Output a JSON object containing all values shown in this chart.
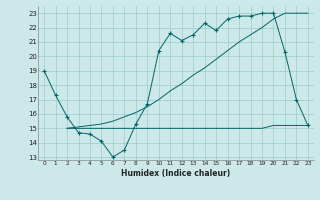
{
  "xlabel": "Humidex (Indice chaleur)",
  "background_color": "#cce8e8",
  "grid_color": "#99cccc",
  "line_color": "#006666",
  "xlim": [
    -0.5,
    23.5
  ],
  "ylim": [
    12.8,
    23.5
  ],
  "yticks": [
    13,
    14,
    15,
    16,
    17,
    18,
    19,
    20,
    21,
    22,
    23
  ],
  "xticks": [
    0,
    1,
    2,
    3,
    4,
    5,
    6,
    7,
    8,
    9,
    10,
    11,
    12,
    13,
    14,
    15,
    16,
    17,
    18,
    19,
    20,
    21,
    22,
    23
  ],
  "series1_x": [
    0,
    1,
    2,
    3,
    4,
    5,
    6,
    7,
    8,
    9,
    10,
    11,
    12,
    13,
    14,
    15,
    16,
    17,
    18,
    19,
    20,
    21,
    22,
    23
  ],
  "series1_y": [
    19.0,
    17.3,
    15.8,
    14.7,
    14.6,
    14.1,
    13.0,
    13.5,
    15.3,
    16.7,
    20.4,
    21.6,
    21.1,
    21.5,
    22.3,
    21.8,
    22.6,
    22.8,
    22.8,
    23.0,
    23.0,
    20.3,
    17.0,
    15.2
  ],
  "series2_x": [
    2,
    3,
    4,
    5,
    6,
    7,
    8,
    9,
    10,
    11,
    12,
    13,
    14,
    15,
    16,
    17,
    18,
    19,
    20,
    21,
    22,
    23
  ],
  "series2_y": [
    15.0,
    15.1,
    15.2,
    15.3,
    15.5,
    15.8,
    16.1,
    16.5,
    17.0,
    17.6,
    18.1,
    18.7,
    19.2,
    19.8,
    20.4,
    21.0,
    21.5,
    22.0,
    22.6,
    23.0,
    23.0,
    23.0
  ],
  "series3_x": [
    2,
    3,
    4,
    5,
    6,
    7,
    8,
    9,
    10,
    11,
    12,
    13,
    14,
    15,
    16,
    17,
    18,
    19,
    20,
    21,
    22,
    23
  ],
  "series3_y": [
    15.0,
    15.0,
    15.0,
    15.0,
    15.0,
    15.0,
    15.0,
    15.0,
    15.0,
    15.0,
    15.0,
    15.0,
    15.0,
    15.0,
    15.0,
    15.0,
    15.0,
    15.0,
    15.2,
    15.2,
    15.2,
    15.2
  ]
}
